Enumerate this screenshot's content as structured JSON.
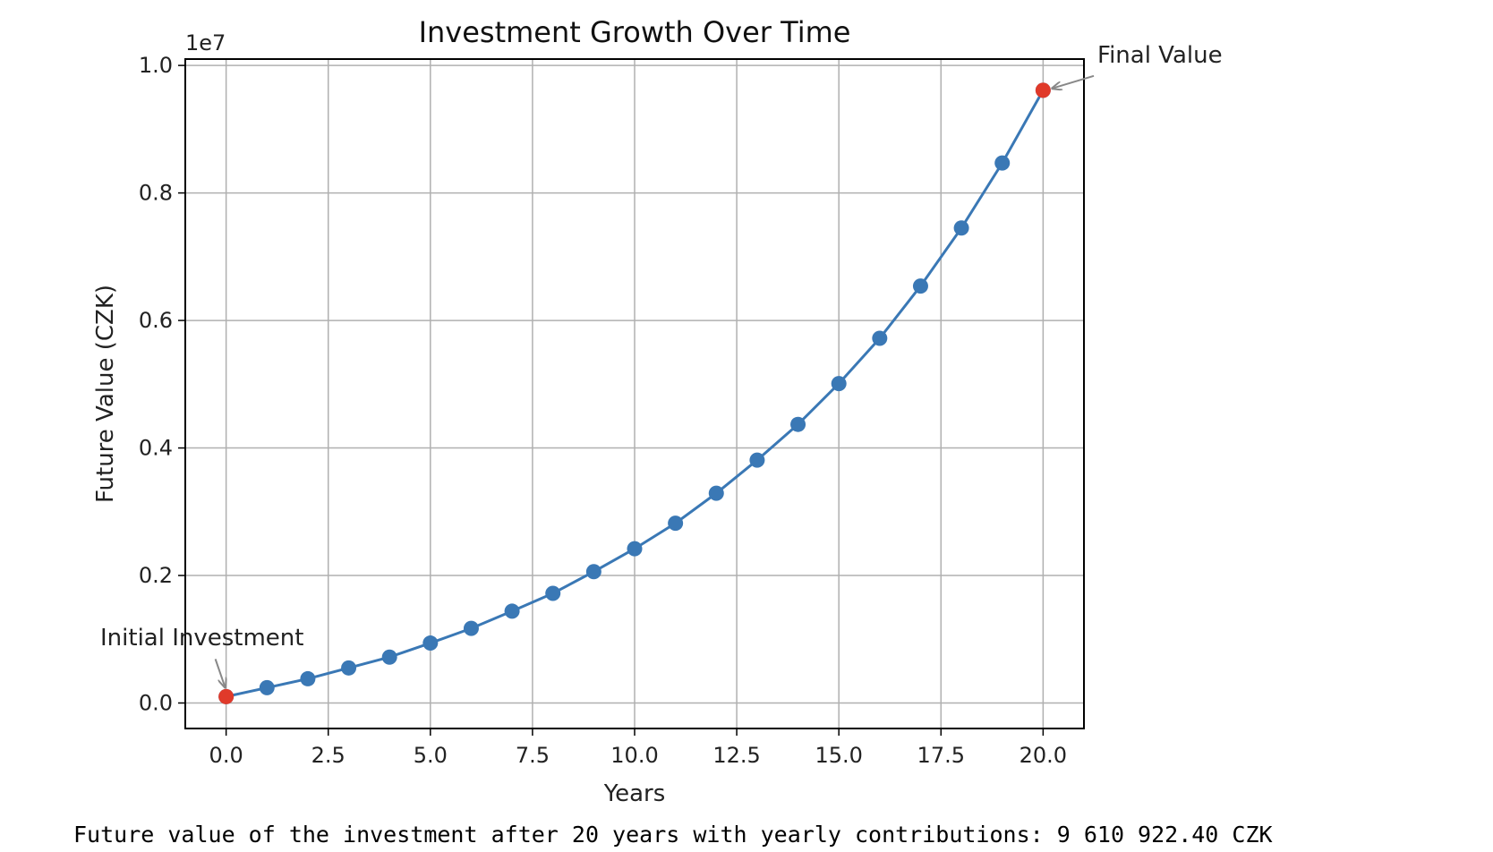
{
  "chart_data": {
    "type": "line",
    "title": "Investment Growth Over Time",
    "xlabel": "Years",
    "ylabel": "Future Value (CZK)",
    "y_offset_label": "1e7",
    "xlim": [
      -1,
      21
    ],
    "ylim": [
      -400000,
      10100000
    ],
    "x_ticks": [
      0.0,
      2.5,
      5.0,
      7.5,
      10.0,
      12.5,
      15.0,
      17.5,
      20.0
    ],
    "x_tick_labels": [
      "0.0",
      "2.5",
      "5.0",
      "7.5",
      "10.0",
      "12.5",
      "15.0",
      "17.5",
      "20.0"
    ],
    "y_ticks": [
      0,
      2000000,
      4000000,
      6000000,
      8000000,
      10000000
    ],
    "y_tick_labels": [
      "0.0",
      "0.2",
      "0.4",
      "0.6",
      "0.8",
      "1.0"
    ],
    "grid": true,
    "series": [
      {
        "color": "#3a78b5",
        "x": [
          0,
          1,
          2,
          3,
          4,
          5,
          6,
          7,
          8,
          9,
          10,
          11,
          12,
          13,
          14,
          15,
          16,
          17,
          18,
          19,
          20
        ],
        "values": [
          100000,
          240000,
          380000,
          550000,
          720000,
          940000,
          1170000,
          1440000,
          1720000,
          2060000,
          2420000,
          2820000,
          3290000,
          3810000,
          4370000,
          5010000,
          5720000,
          6540000,
          7450000,
          8470000,
          9610922.4
        ]
      }
    ],
    "highlight_color": "#e03a2a",
    "annotations": [
      {
        "text": "Initial Investment",
        "x": 0,
        "y": 100000
      },
      {
        "text": "Final Value",
        "x": 20,
        "y": 9610922.4
      }
    ]
  },
  "output_text": "Future value of the investment after 20 years with yearly contributions: 9 610 922.40 CZK"
}
